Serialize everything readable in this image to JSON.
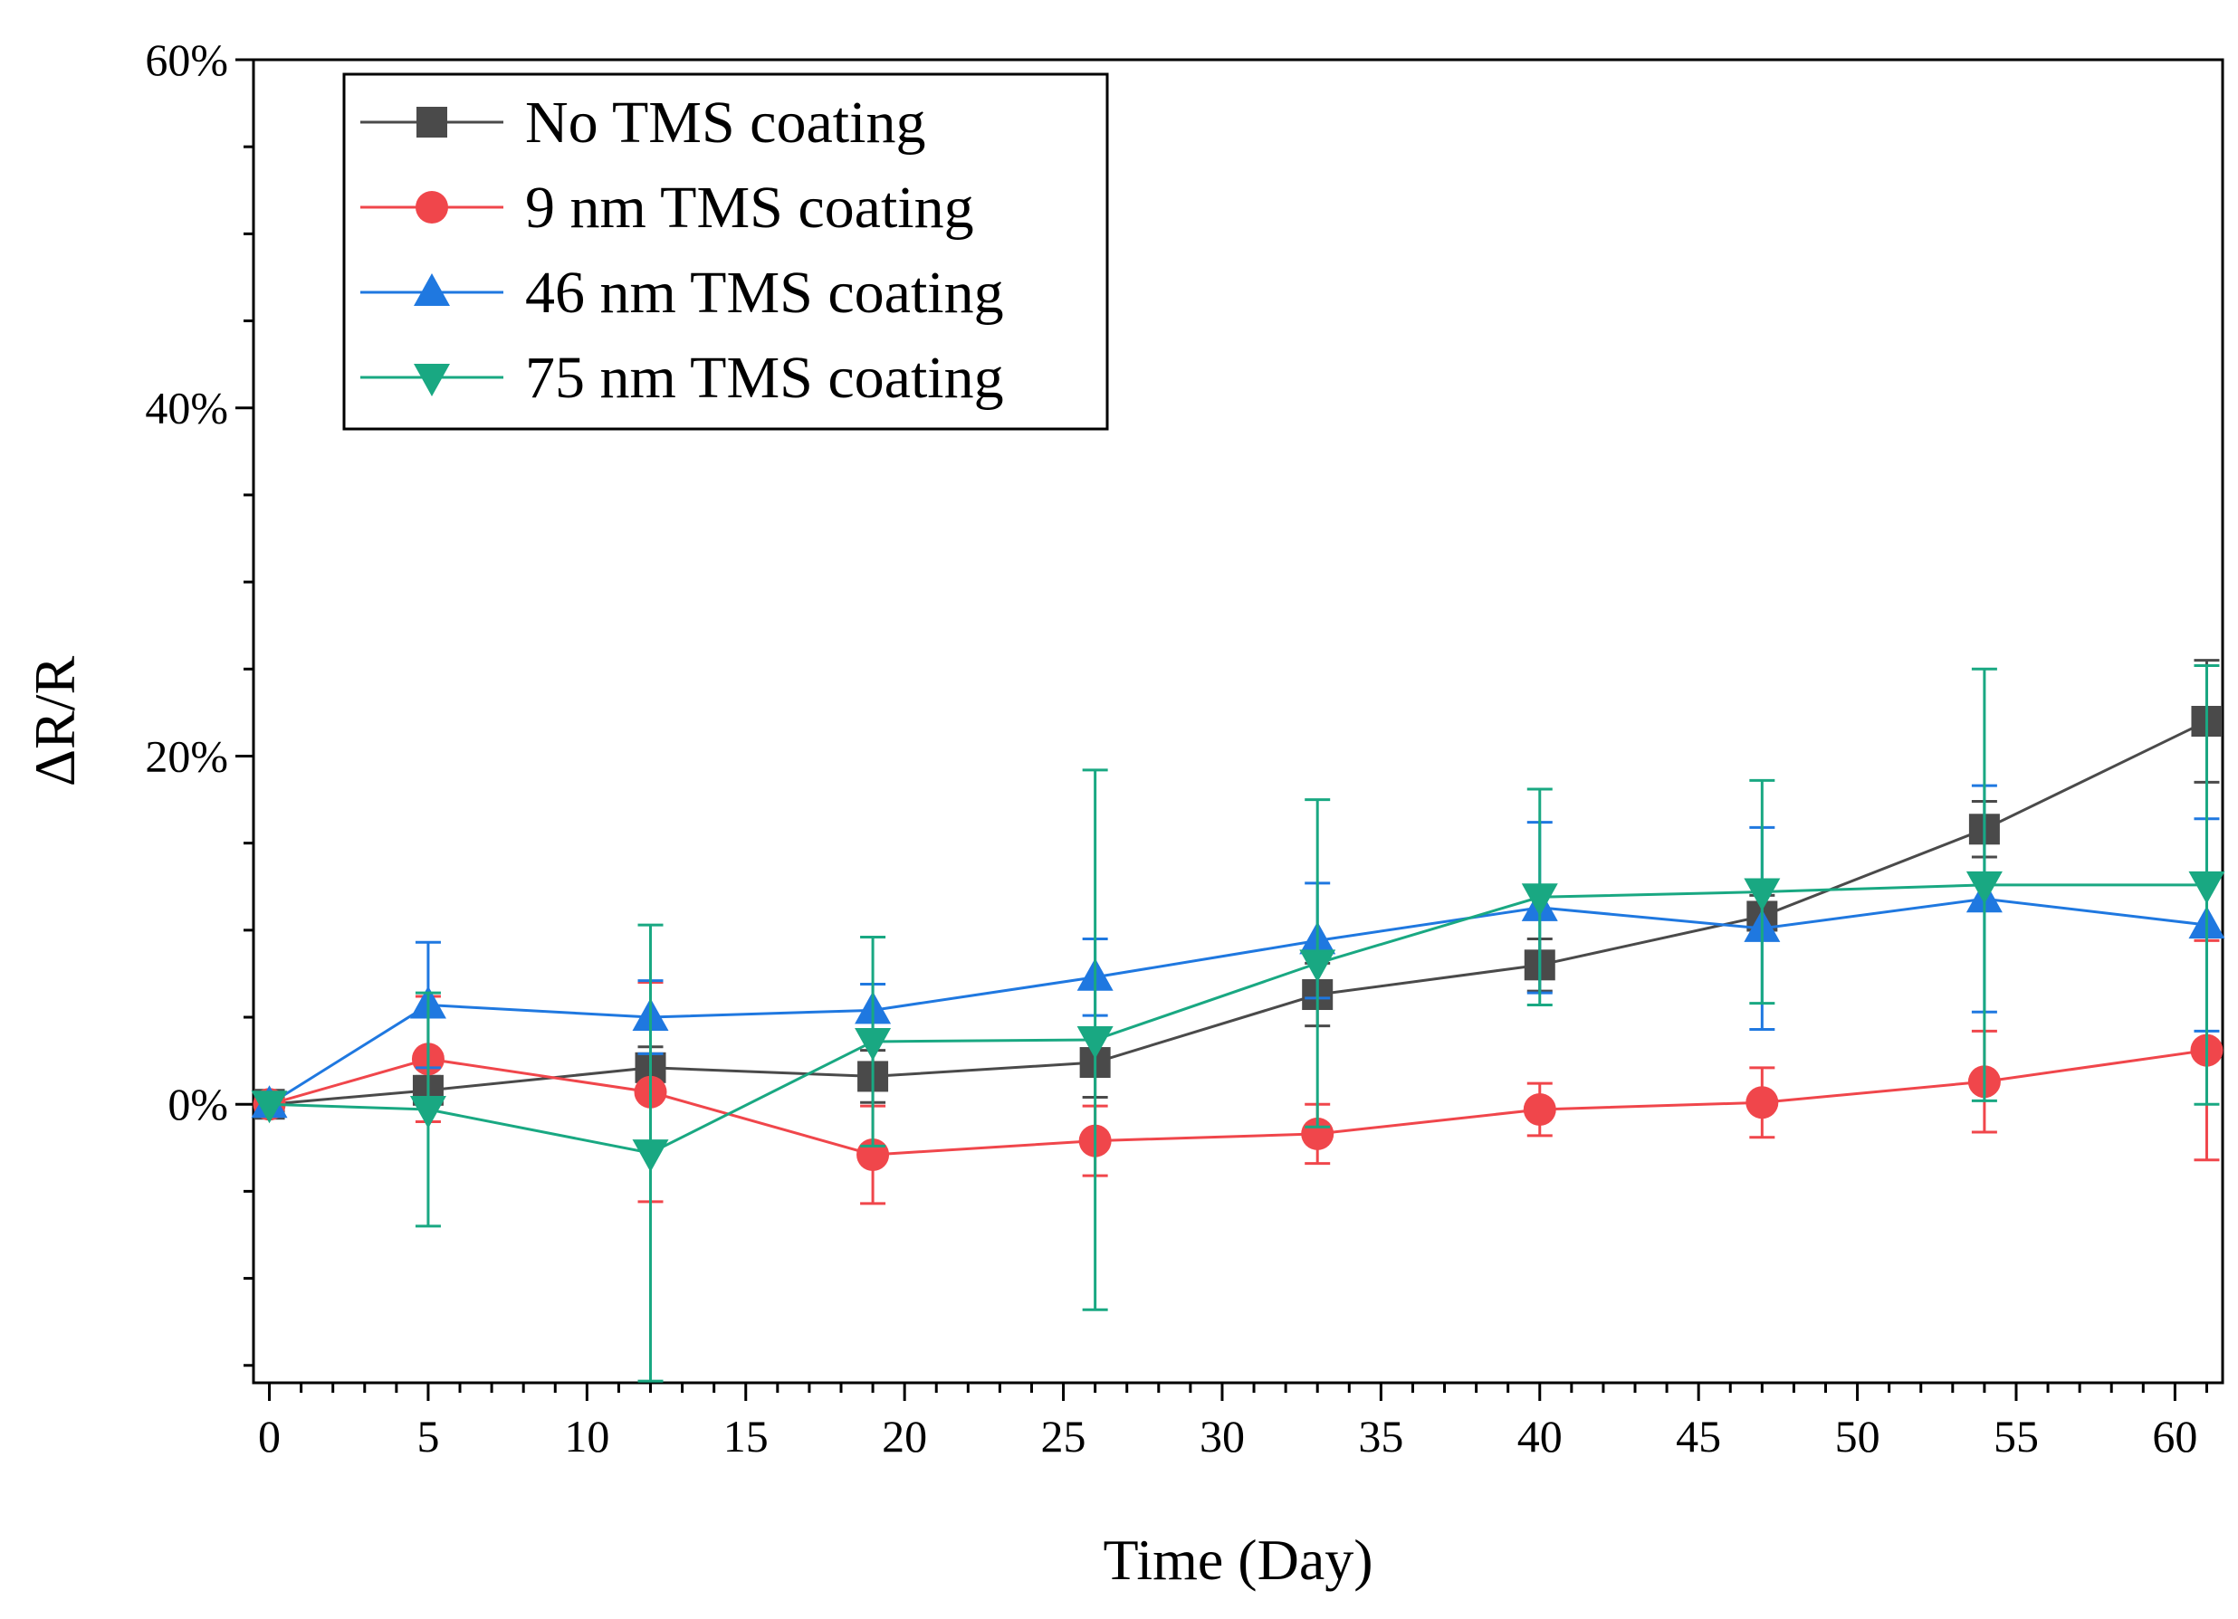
{
  "chart_data": {
    "type": "line",
    "title": "",
    "xlabel": "Time (Day)",
    "ylabel": "ΔR/R",
    "xlim": [
      -0.5,
      61.5
    ],
    "ylim": [
      -16,
      60
    ],
    "x_ticks": [
      0,
      5,
      10,
      15,
      20,
      25,
      30,
      35,
      40,
      45,
      50,
      55,
      60
    ],
    "x_tick_labels": [
      "0",
      "5",
      "10",
      "15",
      "20",
      "25",
      "30",
      "35",
      "40",
      "45",
      "50",
      "55",
      "60"
    ],
    "y_ticks": [
      0,
      20,
      40,
      60
    ],
    "y_tick_labels": [
      "0%",
      "20%",
      "40%",
      "60%"
    ],
    "y_minor_step": 5,
    "x_minor_step": 1,
    "grid": false,
    "legend_position": "top-left",
    "x": [
      0,
      5,
      12,
      19,
      26,
      33,
      40,
      47,
      54,
      61
    ],
    "series": [
      {
        "name": "No TMS coating",
        "color": "#4a4a4a",
        "marker": "square",
        "values": [
          0,
          0.8,
          2.1,
          1.6,
          2.4,
          6.3,
          8.0,
          10.8,
          15.8,
          22.0
        ],
        "errors": [
          0.3,
          0.8,
          1.2,
          1.5,
          2.0,
          1.8,
          1.5,
          1.2,
          1.6,
          3.5
        ]
      },
      {
        "name": "9 nm TMS coating",
        "color": "#f0464b",
        "marker": "circle",
        "values": [
          0,
          2.6,
          0.7,
          -2.9,
          -2.1,
          -1.7,
          -0.3,
          0.1,
          1.3,
          3.1
        ],
        "errors": [
          0.3,
          3.6,
          6.3,
          2.8,
          2.0,
          1.7,
          1.5,
          2.0,
          2.9,
          6.3
        ]
      },
      {
        "name": "46 nm TMS coating",
        "color": "#1f78e0",
        "marker": "triangle-up",
        "values": [
          0,
          5.7,
          5.0,
          5.4,
          7.3,
          9.4,
          11.3,
          10.1,
          11.8,
          10.3
        ],
        "errors": [
          0.3,
          3.6,
          2.1,
          1.5,
          2.2,
          3.3,
          4.9,
          5.8,
          6.5,
          6.1
        ]
      },
      {
        "name": "75 nm TMS coating",
        "color": "#19a882",
        "marker": "triangle-down",
        "values": [
          0,
          -0.3,
          -2.8,
          3.6,
          3.7,
          8.1,
          11.9,
          12.2,
          12.6,
          12.6
        ],
        "errors": [
          0.3,
          6.7,
          13.1,
          6.0,
          15.5,
          9.4,
          6.2,
          6.4,
          12.4,
          12.6
        ]
      }
    ]
  }
}
